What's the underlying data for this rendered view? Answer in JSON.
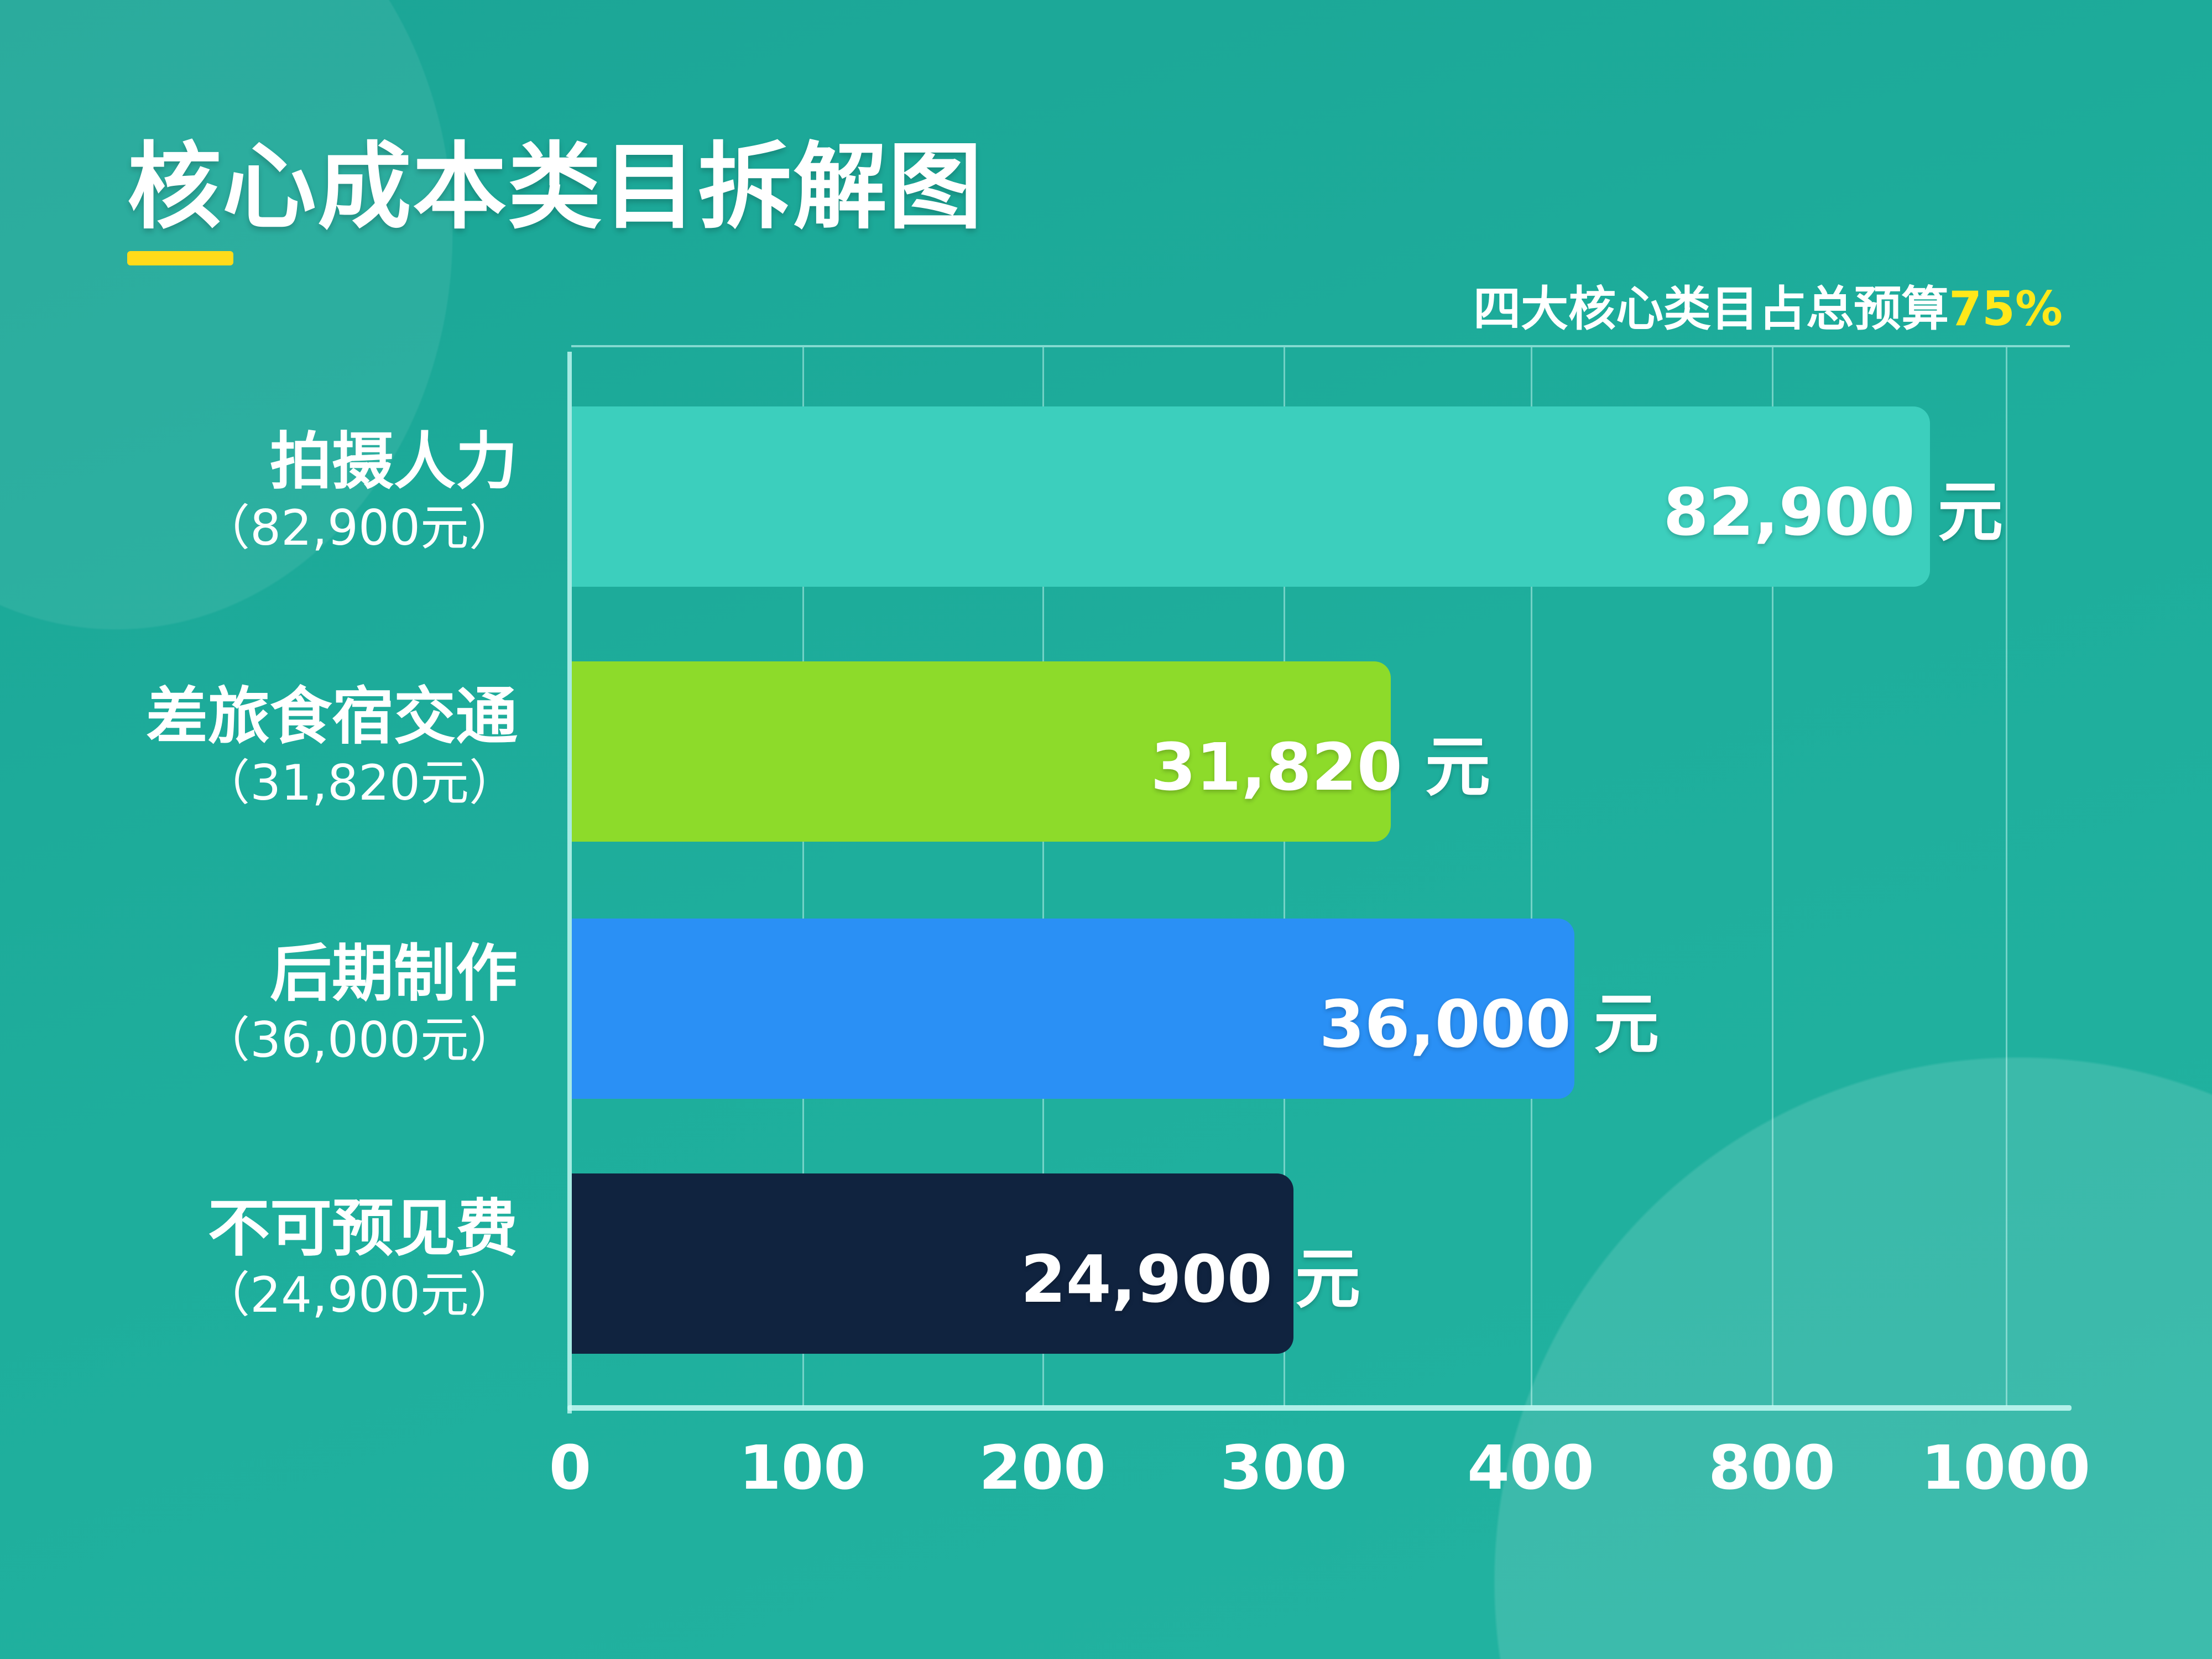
{
  "title": "核心成本类目拆解图",
  "subtitle": {
    "text": "四大核心类目占总预算",
    "highlight": "75%"
  },
  "colors": {
    "accent_yellow": "#ffdb1a",
    "background": "#1eae9c"
  },
  "chart_data": {
    "type": "bar",
    "orientation": "horizontal",
    "title": "核心成本类目拆解图",
    "categories": [
      "拍摄人力",
      "差旅食宿交通",
      "后期制作",
      "不可预见费"
    ],
    "category_sublabels": [
      "（82,900元）",
      "（31,820元）",
      "（36,000元）",
      "（24,900元）"
    ],
    "values": [
      82900,
      31820,
      36000,
      24900
    ],
    "data_labels": [
      "82,900 元",
      "31,820 元",
      "36,000 元",
      "24,900 元"
    ],
    "bar_colors": [
      "#3ccfbd",
      "#8ddb2a",
      "#2a90f5",
      "#10233f"
    ],
    "x_ticks": [
      "0",
      "100",
      "200",
      "300",
      "400",
      "800",
      "1000"
    ],
    "grid": true,
    "legend": "none"
  }
}
